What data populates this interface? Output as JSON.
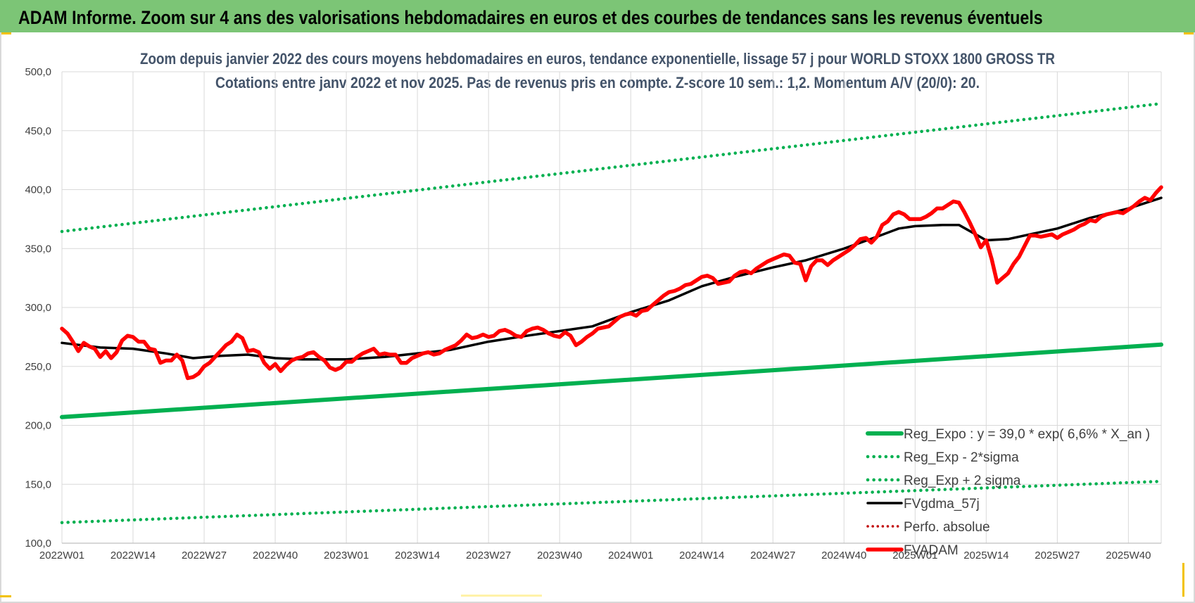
{
  "header": {
    "title": "ADAM Informe. Zoom sur 4 ans des valorisations hebdomadaires en euros et des courbes de tendances sans les revenus éventuels"
  },
  "colors": {
    "header_bg": "#7cc576",
    "reg_expo": "#00b050",
    "reg_bands": "#00b050",
    "fvgdma": "#000000",
    "perfo": "#c00000",
    "fvadam": "#ff0000",
    "grid": "#d9d9d9"
  },
  "chart_data": {
    "type": "line",
    "title": "Zoom depuis janvier 2022 des cours moyens hebdomadaires en euros, tendance exponentielle, lissage 57 j pour WORLD STOXX 1800 GROSS TR",
    "subtitle": "Cotations entre janv 2022 et nov 2025. Pas de revenus pris en compte. Z-score 10 sem.: 1,2. Momentum A/V (20/0): 20.",
    "x_ticks": [
      "2022W01",
      "2022W14",
      "2022W27",
      "2022W40",
      "2023W01",
      "2023W14",
      "2023W27",
      "2023W40",
      "2024W01",
      "2024W14",
      "2024W27",
      "2024W40",
      "2025W01",
      "2025W14",
      "2025W27",
      "2025W40"
    ],
    "x_range": [
      "2022W01",
      "2025W46"
    ],
    "ylim": [
      100,
      500
    ],
    "y_ticks": [
      "100,0",
      "150,0",
      "200,0",
      "250,0",
      "300,0",
      "350,0",
      "400,0",
      "450,0",
      "500,0"
    ],
    "grid": true,
    "legend_position": "bottom-right",
    "series": [
      {
        "name": "Reg_Expo : y = 39,0 * exp( 6,6% *  X_an )",
        "style": "solid-thick",
        "points": [
          [
            "2022W01",
            207.0
          ],
          [
            "2025W46",
            268.5
          ]
        ]
      },
      {
        "name": "Reg_Exp - 2*sigma",
        "style": "dotted",
        "points": [
          [
            "2022W01",
            117.5
          ],
          [
            "2025W46",
            152.5
          ]
        ]
      },
      {
        "name": "Reg_Exp + 2 sigma",
        "style": "dotted",
        "points": [
          [
            "2022W01",
            364.5
          ],
          [
            "2025W46",
            473.0
          ]
        ]
      },
      {
        "name": "FVgdma_57j",
        "style": "solid",
        "points": [
          [
            "2022W01",
            270
          ],
          [
            "2022W08",
            266
          ],
          [
            "2022W14",
            265
          ],
          [
            "2022W20",
            261
          ],
          [
            "2022W25",
            257
          ],
          [
            "2022W30",
            259
          ],
          [
            "2022W35",
            260
          ],
          [
            "2022W40",
            257
          ],
          [
            "2022W45",
            256
          ],
          [
            "2023W01",
            256
          ],
          [
            "2023W08",
            258
          ],
          [
            "2023W14",
            261
          ],
          [
            "2023W20",
            264
          ],
          [
            "2023W27",
            271
          ],
          [
            "2023W34",
            276
          ],
          [
            "2023W40",
            280
          ],
          [
            "2023W46",
            284
          ],
          [
            "2024W01",
            296
          ],
          [
            "2024W08",
            306
          ],
          [
            "2024W14",
            318
          ],
          [
            "2024W20",
            326
          ],
          [
            "2024W27",
            334
          ],
          [
            "2024W33",
            340
          ],
          [
            "2024W40",
            350
          ],
          [
            "2024W46",
            360
          ],
          [
            "2024W50",
            367
          ],
          [
            "2025W01",
            369
          ],
          [
            "2025W06",
            370
          ],
          [
            "2025W09",
            370
          ],
          [
            "2025W14",
            357
          ],
          [
            "2025W18",
            358
          ],
          [
            "2025W22",
            362
          ],
          [
            "2025W27",
            367
          ],
          [
            "2025W33",
            376
          ],
          [
            "2025W40",
            384
          ],
          [
            "2025W46",
            393
          ]
        ]
      },
      {
        "name": "Perfo. absolue",
        "style": "dotted-red",
        "points": []
      },
      {
        "name": "FVADAM",
        "style": "solid-thick-red",
        "points": [
          [
            "2022W01",
            282
          ],
          [
            "2022W02",
            278
          ],
          [
            "2022W03",
            271
          ],
          [
            "2022W04",
            263
          ],
          [
            "2022W05",
            270
          ],
          [
            "2022W06",
            267
          ],
          [
            "2022W07",
            265
          ],
          [
            "2022W08",
            258
          ],
          [
            "2022W09",
            263
          ],
          [
            "2022W10",
            257
          ],
          [
            "2022W11",
            262
          ],
          [
            "2022W12",
            272
          ],
          [
            "2022W13",
            276
          ],
          [
            "2022W14",
            275
          ],
          [
            "2022W15",
            271
          ],
          [
            "2022W16",
            271
          ],
          [
            "2022W17",
            265
          ],
          [
            "2022W18",
            264
          ],
          [
            "2022W19",
            253
          ],
          [
            "2022W20",
            255
          ],
          [
            "2022W21",
            255
          ],
          [
            "2022W22",
            260
          ],
          [
            "2022W23",
            255
          ],
          [
            "2022W24",
            240
          ],
          [
            "2022W25",
            241
          ],
          [
            "2022W26",
            244
          ],
          [
            "2022W27",
            250
          ],
          [
            "2022W28",
            253
          ],
          [
            "2022W29",
            258
          ],
          [
            "2022W30",
            263
          ],
          [
            "2022W31",
            268
          ],
          [
            "2022W32",
            271
          ],
          [
            "2022W33",
            277
          ],
          [
            "2022W34",
            274
          ],
          [
            "2022W35",
            263
          ],
          [
            "2022W36",
            264
          ],
          [
            "2022W37",
            262
          ],
          [
            "2022W38",
            253
          ],
          [
            "2022W39",
            248
          ],
          [
            "2022W40",
            252
          ],
          [
            "2022W41",
            246
          ],
          [
            "2022W42",
            251
          ],
          [
            "2022W43",
            255
          ],
          [
            "2022W44",
            257
          ],
          [
            "2022W45",
            258
          ],
          [
            "2022W46",
            261
          ],
          [
            "2022W47",
            262
          ],
          [
            "2022W48",
            258
          ],
          [
            "2022W49",
            255
          ],
          [
            "2022W50",
            249
          ],
          [
            "2022W51",
            247
          ],
          [
            "2022W52",
            249
          ],
          [
            "2023W01",
            254
          ],
          [
            "2023W02",
            254
          ],
          [
            "2023W03",
            258
          ],
          [
            "2023W04",
            261
          ],
          [
            "2023W05",
            263
          ],
          [
            "2023W06",
            265
          ],
          [
            "2023W07",
            260
          ],
          [
            "2023W08",
            261
          ],
          [
            "2023W09",
            260
          ],
          [
            "2023W10",
            260
          ],
          [
            "2023W11",
            253
          ],
          [
            "2023W12",
            253
          ],
          [
            "2023W13",
            257
          ],
          [
            "2023W14",
            259
          ],
          [
            "2023W15",
            261
          ],
          [
            "2023W16",
            262
          ],
          [
            "2023W17",
            260
          ],
          [
            "2023W18",
            261
          ],
          [
            "2023W19",
            264
          ],
          [
            "2023W20",
            266
          ],
          [
            "2023W21",
            268
          ],
          [
            "2023W22",
            272
          ],
          [
            "2023W23",
            277
          ],
          [
            "2023W24",
            274
          ],
          [
            "2023W25",
            275
          ],
          [
            "2023W26",
            277
          ],
          [
            "2023W27",
            275
          ],
          [
            "2023W28",
            276
          ],
          [
            "2023W29",
            280
          ],
          [
            "2023W30",
            281
          ],
          [
            "2023W31",
            279
          ],
          [
            "2023W32",
            276
          ],
          [
            "2023W33",
            275
          ],
          [
            "2023W34",
            280
          ],
          [
            "2023W35",
            282
          ],
          [
            "2023W36",
            283
          ],
          [
            "2023W37",
            281
          ],
          [
            "2023W38",
            278
          ],
          [
            "2023W39",
            276
          ],
          [
            "2023W40",
            275
          ],
          [
            "2023W41",
            279
          ],
          [
            "2023W42",
            276
          ],
          [
            "2023W43",
            268
          ],
          [
            "2023W44",
            271
          ],
          [
            "2023W45",
            275
          ],
          [
            "2023W46",
            278
          ],
          [
            "2023W47",
            282
          ],
          [
            "2023W48",
            283
          ],
          [
            "2023W49",
            284
          ],
          [
            "2023W50",
            288
          ],
          [
            "2023W51",
            292
          ],
          [
            "2023W52",
            294
          ],
          [
            "2024W01",
            295
          ],
          [
            "2024W02",
            293
          ],
          [
            "2024W03",
            297
          ],
          [
            "2024W04",
            298
          ],
          [
            "2024W05",
            302
          ],
          [
            "2024W06",
            306
          ],
          [
            "2024W07",
            310
          ],
          [
            "2024W08",
            313
          ],
          [
            "2024W09",
            314
          ],
          [
            "2024W10",
            316
          ],
          [
            "2024W11",
            319
          ],
          [
            "2024W12",
            320
          ],
          [
            "2024W13",
            323
          ],
          [
            "2024W14",
            326
          ],
          [
            "2024W15",
            327
          ],
          [
            "2024W16",
            325
          ],
          [
            "2024W17",
            320
          ],
          [
            "2024W18",
            321
          ],
          [
            "2024W19",
            322
          ],
          [
            "2024W20",
            327
          ],
          [
            "2024W21",
            330
          ],
          [
            "2024W22",
            331
          ],
          [
            "2024W23",
            329
          ],
          [
            "2024W24",
            333
          ],
          [
            "2024W25",
            336
          ],
          [
            "2024W26",
            339
          ],
          [
            "2024W27",
            341
          ],
          [
            "2024W28",
            343
          ],
          [
            "2024W29",
            345
          ],
          [
            "2024W30",
            344
          ],
          [
            "2024W31",
            338
          ],
          [
            "2024W32",
            337
          ],
          [
            "2024W33",
            323
          ],
          [
            "2024W34",
            335
          ],
          [
            "2024W35",
            340
          ],
          [
            "2024W36",
            340
          ],
          [
            "2024W37",
            336
          ],
          [
            "2024W38",
            340
          ],
          [
            "2024W39",
            343
          ],
          [
            "2024W40",
            346
          ],
          [
            "2024W41",
            349
          ],
          [
            "2024W42",
            353
          ],
          [
            "2024W43",
            358
          ],
          [
            "2024W44",
            359
          ],
          [
            "2024W45",
            355
          ],
          [
            "2024W46",
            360
          ],
          [
            "2024W47",
            370
          ],
          [
            "2024W48",
            373
          ],
          [
            "2024W49",
            379
          ],
          [
            "2024W50",
            381
          ],
          [
            "2024W51",
            379
          ],
          [
            "2024W52",
            375
          ],
          [
            "2025W01",
            375
          ],
          [
            "2025W02",
            375
          ],
          [
            "2025W03",
            377
          ],
          [
            "2025W04",
            380
          ],
          [
            "2025W05",
            384
          ],
          [
            "2025W06",
            384
          ],
          [
            "2025W07",
            387
          ],
          [
            "2025W08",
            390
          ],
          [
            "2025W09",
            389
          ],
          [
            "2025W10",
            381
          ],
          [
            "2025W11",
            372
          ],
          [
            "2025W12",
            362
          ],
          [
            "2025W13",
            351
          ],
          [
            "2025W14",
            357
          ],
          [
            "2025W15",
            341
          ],
          [
            "2025W16",
            321
          ],
          [
            "2025W17",
            325
          ],
          [
            "2025W18",
            329
          ],
          [
            "2025W19",
            337
          ],
          [
            "2025W20",
            343
          ],
          [
            "2025W21",
            352
          ],
          [
            "2025W22",
            361
          ],
          [
            "2025W23",
            361
          ],
          [
            "2025W24",
            360
          ],
          [
            "2025W25",
            361
          ],
          [
            "2025W26",
            362
          ],
          [
            "2025W27",
            359
          ],
          [
            "2025W28",
            362
          ],
          [
            "2025W29",
            364
          ],
          [
            "2025W30",
            366
          ],
          [
            "2025W31",
            369
          ],
          [
            "2025W32",
            371
          ],
          [
            "2025W33",
            374
          ],
          [
            "2025W34",
            373
          ],
          [
            "2025W35",
            377
          ],
          [
            "2025W36",
            379
          ],
          [
            "2025W37",
            380
          ],
          [
            "2025W38",
            381
          ],
          [
            "2025W39",
            380
          ],
          [
            "2025W40",
            383
          ],
          [
            "2025W41",
            386
          ],
          [
            "2025W42",
            390
          ],
          [
            "2025W43",
            393
          ],
          [
            "2025W44",
            391
          ],
          [
            "2025W45",
            397
          ],
          [
            "2025W46",
            402
          ]
        ]
      }
    ]
  }
}
